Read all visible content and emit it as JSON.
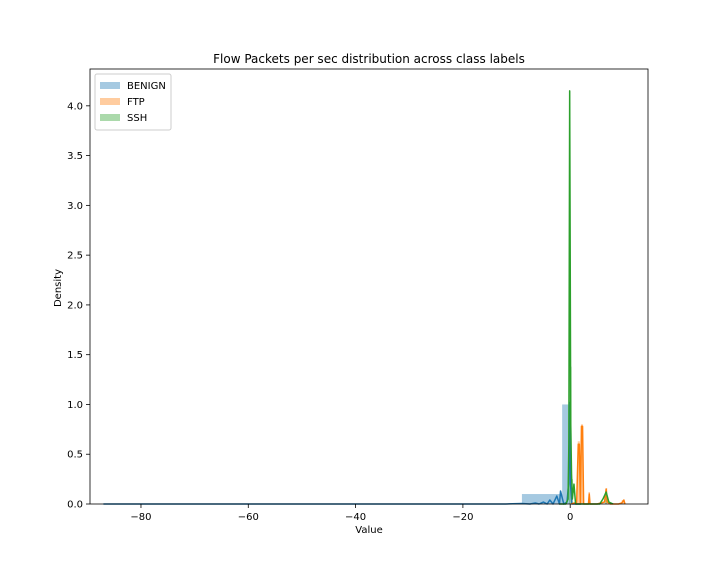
{
  "chart_data": {
    "type": "histogram+kde",
    "title": "Flow Packets per sec distribution across class labels",
    "xlabel": "Value",
    "ylabel": "Density",
    "xlim": [
      -89.5,
      14.5
    ],
    "ylim": [
      0,
      4.37
    ],
    "xticks": [
      -80,
      -60,
      -40,
      -20,
      0
    ],
    "yticks": [
      0.0,
      0.5,
      1.0,
      1.5,
      2.0,
      2.5,
      3.0,
      3.5,
      4.0
    ],
    "legend_position": "top-left",
    "grid": false,
    "series": [
      {
        "name": "BENIGN",
        "color": "#1f77b4",
        "hist_bins": [
          {
            "x0": -9.0,
            "x1": -1.5,
            "density": 0.1
          },
          {
            "x0": -1.5,
            "x1": 0.0,
            "density": 1.0
          }
        ],
        "kde": [
          [
            -87,
            0.0
          ],
          [
            -80,
            0.0
          ],
          [
            -60,
            0.0
          ],
          [
            -40,
            0.0
          ],
          [
            -20,
            0.0
          ],
          [
            -12,
            0.0
          ],
          [
            -9,
            0.005
          ],
          [
            -7.5,
            0.0
          ],
          [
            -6.5,
            0.01
          ],
          [
            -5.8,
            0.0
          ],
          [
            -5,
            0.02
          ],
          [
            -4.3,
            0.0
          ],
          [
            -3.8,
            0.04
          ],
          [
            -3.2,
            0.0
          ],
          [
            -2.5,
            0.08
          ],
          [
            -2.0,
            0.0
          ],
          [
            -1.8,
            0.13
          ],
          [
            -1.2,
            0.0
          ],
          [
            -0.6,
            0.02
          ],
          [
            -0.3,
            0.2
          ],
          [
            -0.1,
            1.02
          ],
          [
            0.05,
            0.2
          ],
          [
            0.3,
            0.0
          ],
          [
            1.0,
            0.0
          ],
          [
            2.0,
            0.0
          ]
        ]
      },
      {
        "name": "FTP",
        "color": "#ff7f0e",
        "hist_bins": [
          {
            "x0": 1.4,
            "x1": 1.8,
            "density": 0.63
          },
          {
            "x0": 2.0,
            "x1": 2.4,
            "density": 0.8
          },
          {
            "x0": 3.4,
            "x1": 3.7,
            "density": 0.12
          },
          {
            "x0": 6.6,
            "x1": 6.9,
            "density": 0.16
          },
          {
            "x0": 9.6,
            "x1": 10.0,
            "density": 0.04
          }
        ],
        "kde": [
          [
            0.2,
            0.0
          ],
          [
            0.8,
            0.01
          ],
          [
            1.2,
            0.0
          ],
          [
            1.5,
            0.6
          ],
          [
            1.7,
            0.6
          ],
          [
            1.9,
            0.0
          ],
          [
            2.1,
            0.78
          ],
          [
            2.3,
            0.78
          ],
          [
            2.5,
            0.0
          ],
          [
            3.4,
            0.0
          ],
          [
            3.55,
            0.1
          ],
          [
            3.7,
            0.0
          ],
          [
            5.0,
            0.0
          ],
          [
            6.4,
            0.02
          ],
          [
            6.7,
            0.15
          ],
          [
            6.9,
            0.02
          ],
          [
            7.5,
            0.0
          ],
          [
            9.0,
            0.0
          ],
          [
            9.6,
            0.01
          ],
          [
            10.0,
            0.04
          ],
          [
            10.2,
            0.0
          ]
        ]
      },
      {
        "name": "SSH",
        "color": "#2ca02c",
        "hist_bins": [
          {
            "x0": -0.2,
            "x1": 0.0,
            "density": 4.15
          },
          {
            "x0": 0.0,
            "x1": 0.25,
            "density": 1.38
          },
          {
            "x0": 0.25,
            "x1": 0.5,
            "density": 0.25
          },
          {
            "x0": 6.5,
            "x1": 6.8,
            "density": 0.1
          }
        ],
        "kde": [
          [
            -2.0,
            0.0
          ],
          [
            -0.8,
            0.0
          ],
          [
            -0.4,
            0.05
          ],
          [
            -0.25,
            0.6
          ],
          [
            -0.1,
            4.15
          ],
          [
            0.0,
            2.5
          ],
          [
            0.1,
            0.8
          ],
          [
            0.25,
            0.3
          ],
          [
            0.4,
            0.05
          ],
          [
            0.7,
            0.2
          ],
          [
            1.0,
            0.0
          ],
          [
            5.5,
            0.0
          ],
          [
            6.1,
            0.05
          ],
          [
            6.7,
            0.12
          ],
          [
            7.2,
            0.02
          ],
          [
            8.0,
            0.0
          ]
        ]
      }
    ]
  }
}
